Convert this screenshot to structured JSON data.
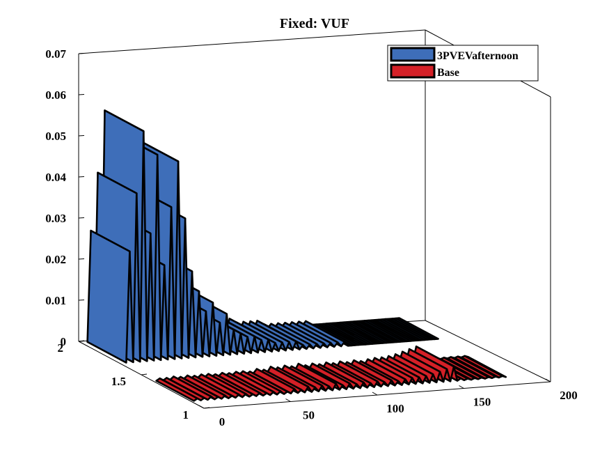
{
  "chart_data": {
    "type": "area",
    "title": "Fixed: VUF",
    "xlabel": "",
    "ylabel": "",
    "zlabel": "",
    "x_ticks": [
      "0",
      "50",
      "100",
      "150",
      "200"
    ],
    "y_ticks": [
      "1",
      "1.5",
      "2"
    ],
    "z_ticks": [
      "0",
      "0.01",
      "0.02",
      "0.03",
      "0.04",
      "0.05",
      "0.06",
      "0.07"
    ],
    "xlim": [
      0,
      200
    ],
    "ylim": [
      1,
      2
    ],
    "zlim": [
      0,
      0.07
    ],
    "grid": false,
    "legend_position": "top-right",
    "x": [
      0,
      2,
      4,
      6,
      8,
      10,
      12,
      14,
      16,
      18,
      20,
      22,
      24,
      26,
      28,
      30,
      32,
      34,
      36,
      38,
      40,
      42,
      44,
      46,
      48,
      50,
      52,
      54,
      56,
      58,
      60,
      62,
      64,
      66,
      68,
      70,
      72,
      74,
      76,
      78,
      80,
      82,
      84,
      86,
      88,
      90,
      92,
      94,
      96,
      98,
      100,
      102,
      104,
      106,
      108,
      110,
      112,
      114,
      116,
      118,
      120,
      122,
      124,
      126,
      128,
      130,
      132,
      134,
      136,
      138,
      140,
      142,
      144,
      146,
      148,
      150,
      152,
      154,
      156,
      158,
      160,
      162,
      164,
      166,
      168,
      170,
      172,
      174,
      176,
      178,
      180
    ],
    "series": [
      {
        "name": "3PVEVafternoon",
        "color": "#3E6EB9",
        "values": [
          0.001,
          0.028,
          0.001,
          0.042,
          0.001,
          0.057,
          0.001,
          0.032,
          0.001,
          0.051,
          0.001,
          0.024,
          0.001,
          0.038,
          0.001,
          0.049,
          0.001,
          0.035,
          0.001,
          0.022,
          0.001,
          0.017,
          0.001,
          0.012,
          0.001,
          0.014,
          0.001,
          0.009,
          0.001,
          0.011,
          0.001,
          0.007,
          0.001,
          0.006,
          0.001,
          0.005,
          0.001,
          0.005,
          0.001,
          0.004,
          0.001,
          0.004,
          0.001,
          0.003,
          0.001,
          0.003,
          0.001,
          0.003,
          0.001,
          0.003,
          0.001,
          0.002,
          0.001,
          0.002,
          0.001,
          0.002,
          0.001,
          0.002,
          0.001,
          0.002,
          0.001,
          0.002,
          0.001,
          0.002,
          0.001,
          0.001,
          0.001,
          0.001,
          0.001,
          0.001,
          0.001,
          0.001,
          0.001,
          0.001,
          0.001,
          0.001,
          0.001,
          0.001,
          0.001,
          0.001,
          0.001,
          0.001,
          0.001,
          0.001,
          0.001,
          0.001,
          0.001,
          0.001,
          0.001,
          0.001,
          0.001
        ]
      },
      {
        "name": "Base",
        "color": "#D42027",
        "values": [
          0.0005,
          0.001,
          0.0005,
          0.001,
          0.0005,
          0.0012,
          0.0005,
          0.001,
          0.0005,
          0.0012,
          0.0005,
          0.001,
          0.0005,
          0.0012,
          0.0005,
          0.0012,
          0.0005,
          0.001,
          0.0005,
          0.0012,
          0.0005,
          0.001,
          0.0005,
          0.0012,
          0.0005,
          0.0012,
          0.0005,
          0.001,
          0.0005,
          0.0015,
          0.0005,
          0.0012,
          0.0005,
          0.0018,
          0.0005,
          0.0015,
          0.0005,
          0.0018,
          0.0005,
          0.0015,
          0.0005,
          0.002,
          0.0005,
          0.0015,
          0.0005,
          0.0018,
          0.0005,
          0.0015,
          0.0005,
          0.0018,
          0.0005,
          0.0015,
          0.0005,
          0.0018,
          0.0005,
          0.0015,
          0.0005,
          0.0018,
          0.0005,
          0.0015,
          0.0005,
          0.0018,
          0.0005,
          0.002,
          0.0005,
          0.002,
          0.0005,
          0.0022,
          0.0005,
          0.0025,
          0.0005,
          0.003,
          0.0005,
          0.0035,
          0.0005,
          0.004,
          0.0005,
          0.001,
          0.0005,
          0.0008,
          0.0005,
          0.0008,
          0.0005,
          0.0008,
          0.0005,
          0.0008,
          0.0005,
          0.0008,
          0.0005,
          0.0008,
          0.0005
        ]
      }
    ]
  }
}
